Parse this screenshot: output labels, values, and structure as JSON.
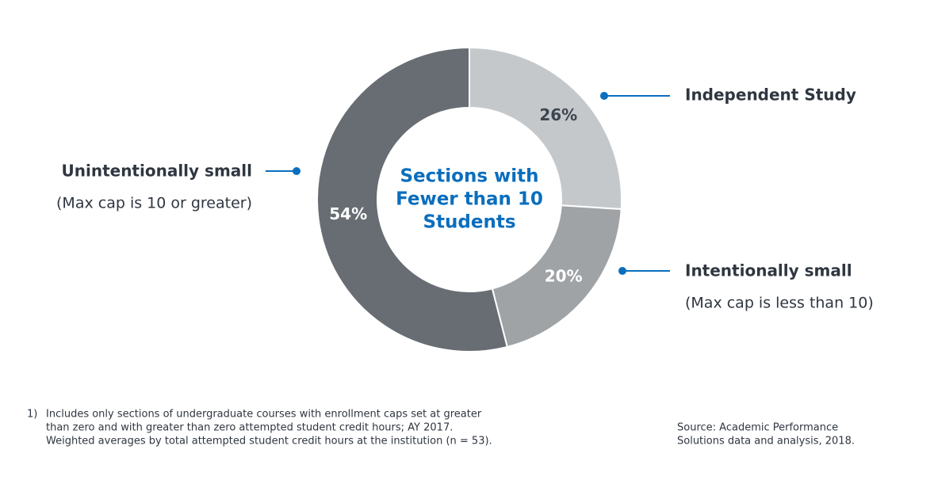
{
  "chart_data": {
    "type": "donut",
    "center_text": [
      "Sections with",
      "Fewer than 10",
      "Students"
    ],
    "categories": [
      "Independent Study",
      "Intentionally small",
      "Unintentionally small"
    ],
    "category_notes": [
      null,
      "(Max cap is less than 10)",
      "(Max cap is 10 or greater)"
    ],
    "values": [
      26,
      20,
      54
    ],
    "value_labels": [
      "26%",
      "20%",
      "54%"
    ],
    "colors": [
      "#c5c8cb",
      "#a0a3a6",
      "#676d73"
    ],
    "label_colors": [
      "#3d4550",
      "#ffffff",
      "#ffffff"
    ],
    "callout_color": "#0a6ebd"
  },
  "footnote": {
    "marker": "1)",
    "lines": [
      "Includes only sections of undergraduate courses with enrollment caps set at greater",
      "than zero and with greater than zero attempted student credit hours; AY 2017.",
      "Weighted averages by total attempted student credit hours at the institution (n = 53)."
    ]
  },
  "source": {
    "lines": [
      "Source: Academic Performance",
      "Solutions data and analysis, 2018."
    ]
  }
}
